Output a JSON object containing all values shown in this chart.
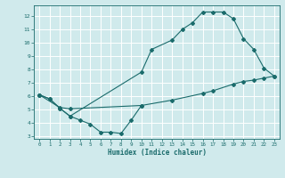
{
  "line1_x": [
    0,
    1,
    2,
    3,
    10,
    11,
    13,
    14,
    15,
    16,
    17,
    18,
    19,
    20,
    21,
    22,
    23
  ],
  "line1_y": [
    6.1,
    5.8,
    5.1,
    4.5,
    7.8,
    9.5,
    10.2,
    11.0,
    11.5,
    12.3,
    12.3,
    12.3,
    11.8,
    10.3,
    9.5,
    8.1,
    7.5
  ],
  "line2_x": [
    0,
    1,
    2,
    3,
    4,
    5,
    6,
    7,
    8,
    9,
    10
  ],
  "line2_y": [
    6.1,
    5.8,
    5.1,
    4.5,
    4.2,
    3.9,
    3.3,
    3.3,
    3.2,
    4.2,
    5.3
  ],
  "line3_x": [
    0,
    2,
    3,
    10,
    13,
    16,
    17,
    19,
    20,
    21,
    22,
    23
  ],
  "line3_y": [
    6.1,
    5.15,
    5.05,
    5.3,
    5.7,
    6.2,
    6.4,
    6.9,
    7.1,
    7.2,
    7.35,
    7.5
  ],
  "color": "#1a6b6b",
  "bg_color": "#d0eaec",
  "grid_color": "#ffffff",
  "xlabel": "Humidex (Indice chaleur)",
  "xlim": [
    -0.5,
    23.5
  ],
  "ylim": [
    2.8,
    12.8
  ],
  "yticks": [
    3,
    4,
    5,
    6,
    7,
    8,
    9,
    10,
    11,
    12
  ],
  "xticks": [
    0,
    1,
    2,
    3,
    4,
    5,
    6,
    7,
    8,
    9,
    10,
    11,
    12,
    13,
    14,
    15,
    16,
    17,
    18,
    19,
    20,
    21,
    22,
    23
  ],
  "marker": "D",
  "markersize": 2.0,
  "linewidth": 0.8
}
